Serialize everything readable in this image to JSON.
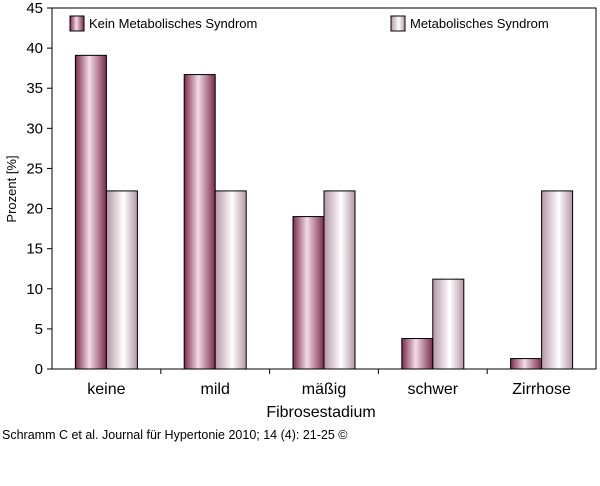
{
  "chart_data": {
    "type": "bar",
    "categories": [
      "keine",
      "mild",
      "mäßig",
      "schwer",
      "Zirrhose"
    ],
    "series": [
      {
        "name": "Kein Metabolisches Syndrom",
        "values": [
          39.1,
          36.7,
          19.0,
          3.8,
          1.3
        ]
      },
      {
        "name": "Metabolisches Syndrom",
        "values": [
          22.2,
          22.2,
          22.2,
          11.2,
          22.2
        ]
      }
    ],
    "title": "",
    "xlabel": "Fibrosestadium",
    "ylabel": "Prozent [%]",
    "ylim": [
      0,
      45
    ],
    "yticks": [
      0,
      5,
      10,
      15,
      20,
      25,
      30,
      35,
      40,
      45
    ],
    "grid": false,
    "legend": "top"
  },
  "colors": {
    "series1_dark": "#7a2a4c",
    "series1_mid": "#b5678a",
    "series1_light": "#f2dce6",
    "series2_dark": "#b596a6",
    "series2_light": "#ffffff"
  },
  "citation": "Schramm C et al. Journal für Hypertonie 2010; 14 (4): 21-25 ©"
}
